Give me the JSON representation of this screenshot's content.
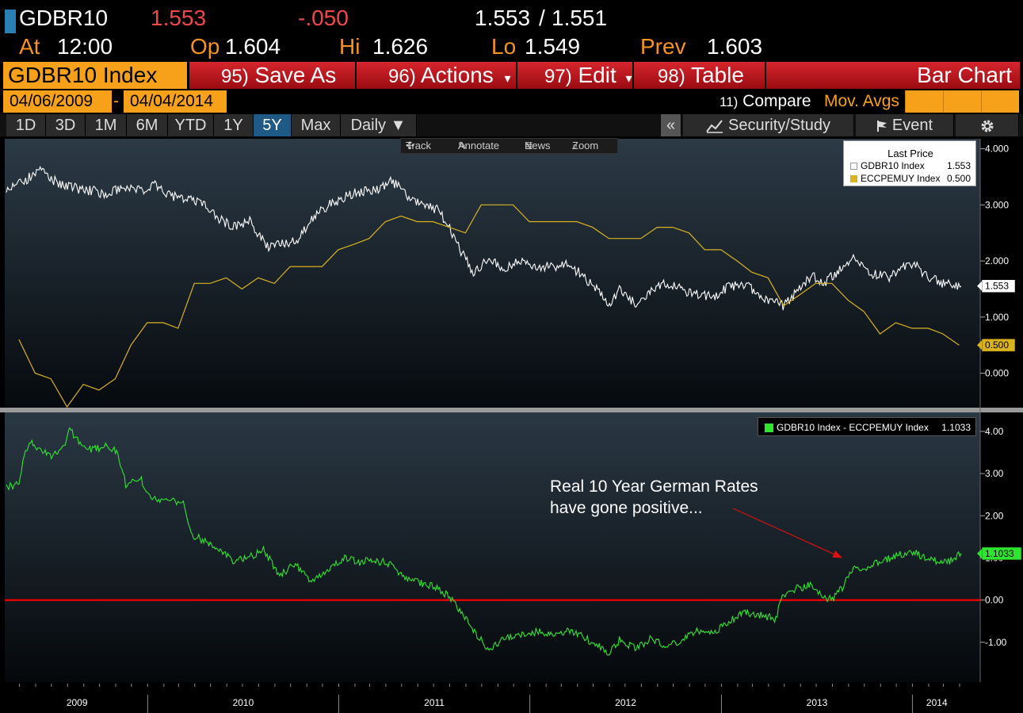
{
  "quote": {
    "ticker": "GDBR10",
    "last": "1.553",
    "change": "-.050",
    "bid": "1.553",
    "slash": "/",
    "ask": "1.551",
    "at_label": "At",
    "time": "12:00",
    "op_label": "Op",
    "open": "1.604",
    "hi_label": "Hi",
    "high": "1.626",
    "lo_label": "Lo",
    "low": "1.549",
    "prev_label": "Prev",
    "prev": "1.603"
  },
  "toolbar": {
    "security": "GDBR10 Index",
    "save_num": "95)",
    "save_label": "Save As",
    "actions_num": "96)",
    "actions_label": "Actions",
    "edit_num": "97)",
    "edit_label": "Edit",
    "table_num": "98)",
    "table_label": "Table",
    "chart_type": "Bar Chart",
    "dropdown_glyph": "▾",
    "colors": {
      "accent": "#f7a11a",
      "bar": "#c4161c"
    }
  },
  "dates": {
    "start": "04/06/2009",
    "separator": "-",
    "end": "04/04/2014",
    "compare_num": "11)",
    "compare_label": "Compare",
    "mov_avgs": "Mov. Avgs"
  },
  "periods": {
    "items": [
      "1D",
      "3D",
      "1M",
      "6M",
      "YTD",
      "1Y",
      "5Y",
      "Max"
    ],
    "active": "5Y",
    "frequency": "Daily ▼",
    "collapse": "«",
    "security_study": "Security/Study",
    "event": "Event"
  },
  "mini_toolbar": {
    "track": "Track",
    "annotate": "Annotate",
    "news": "News",
    "zoom": "Zoom"
  },
  "annotation": {
    "line1": "Real 10 Year German Rates",
    "line2": "have gone positive..."
  },
  "chart_data": [
    {
      "type": "line",
      "legend_title": "Last Price",
      "legend_placement": "top-right",
      "ylim": [
        -0.6,
        4.05
      ],
      "yticks": [
        "4.000",
        "3.000",
        "2.000",
        "1.000",
        "0.000"
      ],
      "x_range": [
        "2009-04-06",
        "2014-04-04"
      ],
      "series": [
        {
          "name": "GDBR10 Index",
          "legend_value": "1.553",
          "last_label": "1.553",
          "color": "#ffffff",
          "points": [
            [
              "2009-04-06",
              3.25
            ],
            [
              "2009-05-15",
              3.45
            ],
            [
              "2009-06-12",
              3.65
            ],
            [
              "2009-07-10",
              3.4
            ],
            [
              "2009-08-15",
              3.3
            ],
            [
              "2009-09-15",
              3.25
            ],
            [
              "2009-10-15",
              3.2
            ],
            [
              "2009-11-15",
              3.3
            ],
            [
              "2009-12-15",
              3.25
            ],
            [
              "2010-01-15",
              3.35
            ],
            [
              "2010-02-15",
              3.15
            ],
            [
              "2010-03-15",
              3.1
            ],
            [
              "2010-04-15",
              3.05
            ],
            [
              "2010-05-15",
              2.75
            ],
            [
              "2010-06-15",
              2.6
            ],
            [
              "2010-07-15",
              2.7
            ],
            [
              "2010-08-20",
              2.25
            ],
            [
              "2010-09-10",
              2.3
            ],
            [
              "2010-10-10",
              2.35
            ],
            [
              "2010-11-15",
              2.8
            ],
            [
              "2010-12-15",
              3.0
            ],
            [
              "2011-01-15",
              3.15
            ],
            [
              "2011-02-15",
              3.25
            ],
            [
              "2011-03-15",
              3.25
            ],
            [
              "2011-04-10",
              3.45
            ],
            [
              "2011-05-15",
              3.15
            ],
            [
              "2011-06-15",
              3.0
            ],
            [
              "2011-07-10",
              2.9
            ],
            [
              "2011-08-01",
              2.6
            ],
            [
              "2011-08-20",
              2.2
            ],
            [
              "2011-09-15",
              1.8
            ],
            [
              "2011-10-15",
              2.05
            ],
            [
              "2011-11-15",
              1.85
            ],
            [
              "2011-12-15",
              2.0
            ],
            [
              "2012-01-15",
              1.9
            ],
            [
              "2012-02-15",
              1.9
            ],
            [
              "2012-03-15",
              1.95
            ],
            [
              "2012-04-15",
              1.7
            ],
            [
              "2012-05-15",
              1.45
            ],
            [
              "2012-06-01",
              1.2
            ],
            [
              "2012-06-20",
              1.5
            ],
            [
              "2012-07-20",
              1.25
            ],
            [
              "2012-08-20",
              1.45
            ],
            [
              "2012-09-15",
              1.6
            ],
            [
              "2012-10-15",
              1.5
            ],
            [
              "2012-11-15",
              1.4
            ],
            [
              "2012-12-15",
              1.35
            ],
            [
              "2013-01-15",
              1.55
            ],
            [
              "2013-02-15",
              1.6
            ],
            [
              "2013-03-15",
              1.4
            ],
            [
              "2013-04-15",
              1.25
            ],
            [
              "2013-05-01",
              1.2
            ],
            [
              "2013-05-30",
              1.5
            ],
            [
              "2013-06-25",
              1.75
            ],
            [
              "2013-07-15",
              1.6
            ],
            [
              "2013-08-15",
              1.85
            ],
            [
              "2013-09-10",
              2.05
            ],
            [
              "2013-10-10",
              1.8
            ],
            [
              "2013-11-15",
              1.7
            ],
            [
              "2013-12-15",
              1.9
            ],
            [
              "2014-01-02",
              1.95
            ],
            [
              "2014-02-01",
              1.7
            ],
            [
              "2014-03-01",
              1.6
            ],
            [
              "2014-04-04",
              1.553
            ]
          ]
        },
        {
          "name": "ECCPEMUY Index",
          "legend_value": "0.500",
          "last_label": "0.500",
          "color": "#d9b21f",
          "points": [
            [
              "2009-04-30",
              0.6
            ],
            [
              "2009-05-31",
              0.0
            ],
            [
              "2009-06-30",
              -0.1
            ],
            [
              "2009-07-31",
              -0.6
            ],
            [
              "2009-08-31",
              -0.2
            ],
            [
              "2009-09-30",
              -0.3
            ],
            [
              "2009-10-31",
              -0.1
            ],
            [
              "2009-11-30",
              0.5
            ],
            [
              "2009-12-31",
              0.9
            ],
            [
              "2010-01-31",
              0.9
            ],
            [
              "2010-02-28",
              0.8
            ],
            [
              "2010-03-31",
              1.6
            ],
            [
              "2010-04-30",
              1.6
            ],
            [
              "2010-05-31",
              1.7
            ],
            [
              "2010-06-30",
              1.5
            ],
            [
              "2010-07-31",
              1.7
            ],
            [
              "2010-08-31",
              1.6
            ],
            [
              "2010-09-30",
              1.9
            ],
            [
              "2010-10-31",
              1.9
            ],
            [
              "2010-11-30",
              1.9
            ],
            [
              "2010-12-31",
              2.2
            ],
            [
              "2011-01-31",
              2.3
            ],
            [
              "2011-02-28",
              2.4
            ],
            [
              "2011-03-31",
              2.7
            ],
            [
              "2011-04-30",
              2.8
            ],
            [
              "2011-05-31",
              2.7
            ],
            [
              "2011-06-30",
              2.7
            ],
            [
              "2011-07-31",
              2.6
            ],
            [
              "2011-08-31",
              2.5
            ],
            [
              "2011-09-30",
              3.0
            ],
            [
              "2011-10-31",
              3.0
            ],
            [
              "2011-11-30",
              3.0
            ],
            [
              "2011-12-31",
              2.7
            ],
            [
              "2012-01-31",
              2.7
            ],
            [
              "2012-02-29",
              2.7
            ],
            [
              "2012-03-31",
              2.7
            ],
            [
              "2012-04-30",
              2.6
            ],
            [
              "2012-05-31",
              2.4
            ],
            [
              "2012-06-30",
              2.4
            ],
            [
              "2012-07-31",
              2.4
            ],
            [
              "2012-08-31",
              2.6
            ],
            [
              "2012-09-30",
              2.6
            ],
            [
              "2012-10-31",
              2.5
            ],
            [
              "2012-11-30",
              2.2
            ],
            [
              "2012-12-31",
              2.2
            ],
            [
              "2013-01-31",
              2.0
            ],
            [
              "2013-02-28",
              1.8
            ],
            [
              "2013-03-31",
              1.7
            ],
            [
              "2013-04-30",
              1.2
            ],
            [
              "2013-05-31",
              1.4
            ],
            [
              "2013-06-30",
              1.6
            ],
            [
              "2013-07-31",
              1.6
            ],
            [
              "2013-08-31",
              1.3
            ],
            [
              "2013-09-30",
              1.1
            ],
            [
              "2013-10-31",
              0.7
            ],
            [
              "2013-11-30",
              0.9
            ],
            [
              "2013-12-31",
              0.8
            ],
            [
              "2014-01-31",
              0.8
            ],
            [
              "2014-02-28",
              0.7
            ],
            [
              "2014-03-31",
              0.5
            ]
          ]
        }
      ]
    },
    {
      "type": "line",
      "legend_placement": "top-right",
      "ylim": [
        -1.85,
        4.45
      ],
      "yticks": [
        "4.00",
        "3.00",
        "2.00",
        "1.00",
        "0.00",
        "-1.00"
      ],
      "reference_line": {
        "y": 0.0,
        "color": "#e00000"
      },
      "x_range": [
        "2009-04-06",
        "2014-04-04"
      ],
      "x_tick_labels": [
        "2009",
        "2010",
        "2011",
        "2012",
        "2013",
        "2014"
      ],
      "series": [
        {
          "name": "GDBR10 Index - ECCPEMUY Index",
          "legend_value": "1.1033",
          "last_label": "1.1033",
          "color": "#2fe52f",
          "points": [
            [
              "2009-04-06",
              2.65
            ],
            [
              "2009-04-30",
              2.8
            ],
            [
              "2009-05-10",
              3.5
            ],
            [
              "2009-05-20",
              3.75
            ],
            [
              "2009-06-10",
              3.6
            ],
            [
              "2009-07-01",
              3.4
            ],
            [
              "2009-07-25",
              3.6
            ],
            [
              "2009-08-05",
              4.05
            ],
            [
              "2009-08-25",
              3.7
            ],
            [
              "2009-09-15",
              3.55
            ],
            [
              "2009-10-15",
              3.65
            ],
            [
              "2009-11-05",
              3.5
            ],
            [
              "2009-11-20",
              2.75
            ],
            [
              "2009-12-20",
              2.85
            ],
            [
              "2010-01-05",
              2.45
            ],
            [
              "2010-02-15",
              2.35
            ],
            [
              "2010-03-10",
              2.3
            ],
            [
              "2010-03-25",
              1.55
            ],
            [
              "2010-05-10",
              1.3
            ],
            [
              "2010-06-15",
              0.9
            ],
            [
              "2010-07-20",
              1.05
            ],
            [
              "2010-08-10",
              1.2
            ],
            [
              "2010-09-10",
              0.6
            ],
            [
              "2010-10-10",
              0.85
            ],
            [
              "2010-11-10",
              0.4
            ],
            [
              "2010-12-10",
              0.7
            ],
            [
              "2011-01-10",
              1.0
            ],
            [
              "2011-02-10",
              0.9
            ],
            [
              "2011-03-10",
              0.95
            ],
            [
              "2011-04-10",
              0.85
            ],
            [
              "2011-05-10",
              0.5
            ],
            [
              "2011-06-10",
              0.4
            ],
            [
              "2011-07-10",
              0.3
            ],
            [
              "2011-08-01",
              0.05
            ],
            [
              "2011-08-20",
              -0.25
            ],
            [
              "2011-09-15",
              -0.7
            ],
            [
              "2011-10-15",
              -1.2
            ],
            [
              "2011-11-15",
              -0.9
            ],
            [
              "2011-12-15",
              -0.8
            ],
            [
              "2012-01-15",
              -0.75
            ],
            [
              "2012-02-15",
              -0.85
            ],
            [
              "2012-03-15",
              -0.7
            ],
            [
              "2012-04-15",
              -0.9
            ],
            [
              "2012-05-15",
              -1.1
            ],
            [
              "2012-06-01",
              -1.25
            ],
            [
              "2012-06-20",
              -0.95
            ],
            [
              "2012-07-20",
              -1.15
            ],
            [
              "2012-08-20",
              -0.9
            ],
            [
              "2012-09-15",
              -1.1
            ],
            [
              "2012-10-15",
              -0.95
            ],
            [
              "2012-11-15",
              -0.75
            ],
            [
              "2012-12-15",
              -0.8
            ],
            [
              "2013-01-15",
              -0.5
            ],
            [
              "2013-02-15",
              -0.3
            ],
            [
              "2013-03-15",
              -0.35
            ],
            [
              "2013-04-15",
              -0.45
            ],
            [
              "2013-04-25",
              0.05
            ],
            [
              "2013-05-20",
              0.25
            ],
            [
              "2013-06-20",
              0.35
            ],
            [
              "2013-07-15",
              0.1
            ],
            [
              "2013-08-01",
              0.0
            ],
            [
              "2013-08-20",
              0.3
            ],
            [
              "2013-09-10",
              0.75
            ],
            [
              "2013-10-10",
              0.8
            ],
            [
              "2013-11-01",
              0.9
            ],
            [
              "2013-12-01",
              1.05
            ],
            [
              "2014-01-01",
              1.15
            ],
            [
              "2014-02-01",
              0.95
            ],
            [
              "2014-03-01",
              0.9
            ],
            [
              "2014-03-20",
              0.95
            ],
            [
              "2014-04-04",
              1.1033
            ]
          ]
        }
      ]
    }
  ]
}
